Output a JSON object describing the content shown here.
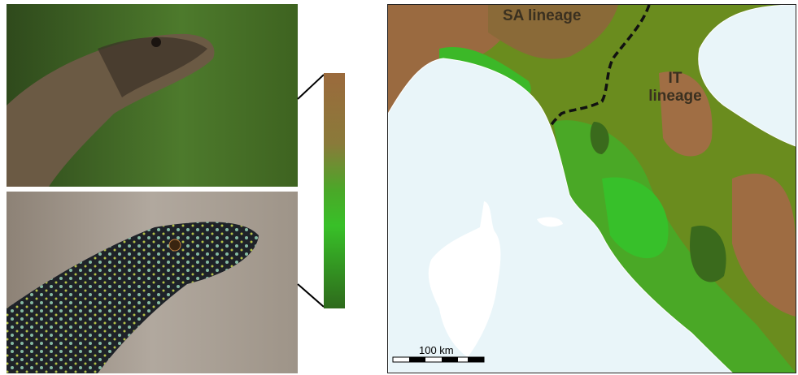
{
  "map": {
    "sa_label": "SA lineage",
    "it_label": "IT lineage",
    "scale_label": "100 km"
  }
}
